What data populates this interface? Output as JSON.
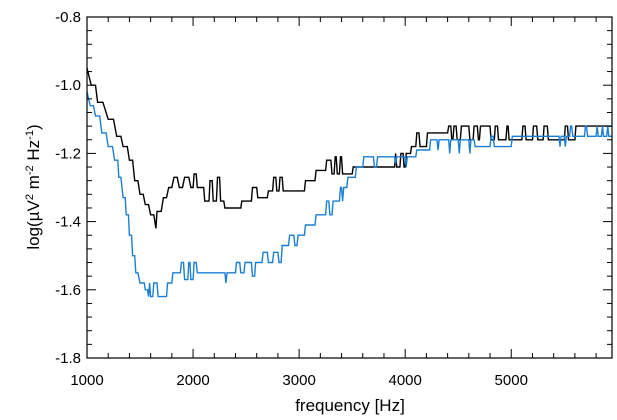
{
  "chart_data": {
    "type": "line",
    "title": "",
    "xlabel": "frequency [Hz]",
    "ylabel_parts": [
      "log(",
      "µ",
      "V",
      "2",
      " m",
      "-2",
      " Hz",
      "-1",
      ")"
    ],
    "xlim": [
      1000,
      5950
    ],
    "ylim": [
      -1.8,
      -0.8
    ],
    "x_ticks": [
      1000,
      2000,
      3000,
      4000,
      5000
    ],
    "x_tick_labels": [
      "1000",
      "2000",
      "3000",
      "4000",
      "5000"
    ],
    "y_ticks": [
      -1.8,
      -1.6,
      -1.4,
      -1.2,
      -1.0,
      -0.8
    ],
    "y_tick_labels": [
      "-1.8",
      "-1.6",
      "-1.4",
      "-1.2",
      "-1.0",
      "-0.8"
    ],
    "grid": false,
    "legend": "none",
    "series": [
      {
        "color": "#000000",
        "points": [
          [
            1000,
            -0.95
          ],
          [
            1040,
            -1.0
          ],
          [
            1080,
            -1.0
          ],
          [
            1100,
            -1.05
          ],
          [
            1150,
            -1.05
          ],
          [
            1200,
            -1.1
          ],
          [
            1250,
            -1.1
          ],
          [
            1280,
            -1.15
          ],
          [
            1320,
            -1.15
          ],
          [
            1340,
            -1.18
          ],
          [
            1380,
            -1.18
          ],
          [
            1400,
            -1.22
          ],
          [
            1430,
            -1.22
          ],
          [
            1450,
            -1.28
          ],
          [
            1480,
            -1.28
          ],
          [
            1500,
            -1.32
          ],
          [
            1530,
            -1.32
          ],
          [
            1550,
            -1.35
          ],
          [
            1580,
            -1.35
          ],
          [
            1600,
            -1.38
          ],
          [
            1630,
            -1.38
          ],
          [
            1650,
            -1.42
          ],
          [
            1660,
            -1.37
          ],
          [
            1700,
            -1.37
          ],
          [
            1720,
            -1.33
          ],
          [
            1750,
            -1.33
          ],
          [
            1770,
            -1.3
          ],
          [
            1800,
            -1.3
          ],
          [
            1820,
            -1.27
          ],
          [
            1850,
            -1.27
          ],
          [
            1870,
            -1.3
          ],
          [
            1900,
            -1.3
          ],
          [
            1920,
            -1.27
          ],
          [
            1960,
            -1.27
          ],
          [
            1980,
            -1.3
          ],
          [
            2000,
            -1.3
          ],
          [
            2010,
            -1.26
          ],
          [
            2030,
            -1.26
          ],
          [
            2040,
            -1.3
          ],
          [
            2100,
            -1.3
          ],
          [
            2110,
            -1.34
          ],
          [
            2150,
            -1.34
          ],
          [
            2160,
            -1.28
          ],
          [
            2180,
            -1.28
          ],
          [
            2190,
            -1.34
          ],
          [
            2220,
            -1.34
          ],
          [
            2230,
            -1.27
          ],
          [
            2250,
            -1.27
          ],
          [
            2260,
            -1.34
          ],
          [
            2290,
            -1.34
          ],
          [
            2300,
            -1.36
          ],
          [
            2450,
            -1.36
          ],
          [
            2460,
            -1.34
          ],
          [
            2550,
            -1.34
          ],
          [
            2560,
            -1.3
          ],
          [
            2600,
            -1.3
          ],
          [
            2610,
            -1.33
          ],
          [
            2700,
            -1.33
          ],
          [
            2710,
            -1.31
          ],
          [
            2750,
            -1.31
          ],
          [
            2760,
            -1.27
          ],
          [
            2780,
            -1.27
          ],
          [
            2790,
            -1.31
          ],
          [
            2810,
            -1.31
          ],
          [
            2820,
            -1.27
          ],
          [
            2840,
            -1.27
          ],
          [
            2850,
            -1.31
          ],
          [
            3050,
            -1.31
          ],
          [
            3060,
            -1.28
          ],
          [
            3150,
            -1.28
          ],
          [
            3160,
            -1.25
          ],
          [
            3250,
            -1.25
          ],
          [
            3260,
            -1.22
          ],
          [
            3300,
            -1.22
          ],
          [
            3310,
            -1.26
          ],
          [
            3330,
            -1.26
          ],
          [
            3340,
            -1.21
          ],
          [
            3350,
            -1.21
          ],
          [
            3360,
            -1.26
          ],
          [
            3380,
            -1.26
          ],
          [
            3390,
            -1.21
          ],
          [
            3400,
            -1.21
          ],
          [
            3410,
            -1.26
          ],
          [
            3500,
            -1.26
          ],
          [
            3510,
            -1.24
          ],
          [
            3900,
            -1.24
          ],
          [
            3910,
            -1.2
          ],
          [
            3920,
            -1.24
          ],
          [
            3950,
            -1.24
          ],
          [
            3960,
            -1.2
          ],
          [
            3980,
            -1.2
          ],
          [
            3990,
            -1.24
          ],
          [
            4000,
            -1.24
          ],
          [
            4010,
            -1.2
          ],
          [
            4050,
            -1.2
          ],
          [
            4060,
            -1.18
          ],
          [
            4100,
            -1.18
          ],
          [
            4110,
            -1.14
          ],
          [
            4130,
            -1.14
          ],
          [
            4140,
            -1.18
          ],
          [
            4200,
            -1.18
          ],
          [
            4210,
            -1.14
          ],
          [
            4400,
            -1.14
          ],
          [
            4410,
            -1.12
          ],
          [
            4430,
            -1.12
          ],
          [
            4440,
            -1.16
          ],
          [
            4450,
            -1.16
          ],
          [
            4460,
            -1.12
          ],
          [
            4480,
            -1.12
          ],
          [
            4490,
            -1.16
          ],
          [
            4520,
            -1.16
          ],
          [
            4530,
            -1.12
          ],
          [
            4600,
            -1.12
          ],
          [
            4610,
            -1.16
          ],
          [
            4640,
            -1.16
          ],
          [
            4650,
            -1.12
          ],
          [
            4680,
            -1.12
          ],
          [
            4690,
            -1.16
          ],
          [
            4700,
            -1.16
          ],
          [
            4710,
            -1.12
          ],
          [
            4800,
            -1.12
          ],
          [
            4810,
            -1.16
          ],
          [
            4840,
            -1.16
          ],
          [
            4850,
            -1.12
          ],
          [
            4870,
            -1.12
          ],
          [
            4880,
            -1.16
          ],
          [
            4950,
            -1.16
          ],
          [
            4960,
            -1.12
          ],
          [
            4970,
            -1.12
          ],
          [
            4980,
            -1.16
          ],
          [
            5100,
            -1.16
          ],
          [
            5110,
            -1.12
          ],
          [
            5130,
            -1.12
          ],
          [
            5140,
            -1.16
          ],
          [
            5200,
            -1.16
          ],
          [
            5210,
            -1.12
          ],
          [
            5240,
            -1.12
          ],
          [
            5250,
            -1.16
          ],
          [
            5300,
            -1.16
          ],
          [
            5310,
            -1.12
          ],
          [
            5340,
            -1.12
          ],
          [
            5350,
            -1.16
          ],
          [
            5500,
            -1.16
          ],
          [
            5510,
            -1.12
          ],
          [
            5530,
            -1.12
          ],
          [
            5540,
            -1.16
          ],
          [
            5600,
            -1.16
          ],
          [
            5610,
            -1.12
          ],
          [
            5950,
            -1.12
          ]
        ]
      },
      {
        "color": "#1a7fd4",
        "points": [
          [
            1000,
            -1.02
          ],
          [
            1030,
            -1.06
          ],
          [
            1060,
            -1.06
          ],
          [
            1080,
            -1.09
          ],
          [
            1120,
            -1.09
          ],
          [
            1140,
            -1.14
          ],
          [
            1180,
            -1.14
          ],
          [
            1200,
            -1.18
          ],
          [
            1240,
            -1.18
          ],
          [
            1260,
            -1.22
          ],
          [
            1290,
            -1.22
          ],
          [
            1300,
            -1.27
          ],
          [
            1320,
            -1.27
          ],
          [
            1340,
            -1.33
          ],
          [
            1360,
            -1.33
          ],
          [
            1370,
            -1.38
          ],
          [
            1390,
            -1.38
          ],
          [
            1400,
            -1.44
          ],
          [
            1420,
            -1.44
          ],
          [
            1430,
            -1.5
          ],
          [
            1450,
            -1.5
          ],
          [
            1460,
            -1.55
          ],
          [
            1480,
            -1.55
          ],
          [
            1500,
            -1.58
          ],
          [
            1540,
            -1.58
          ],
          [
            1550,
            -1.6
          ],
          [
            1570,
            -1.6
          ],
          [
            1580,
            -1.62
          ],
          [
            1590,
            -1.58
          ],
          [
            1600,
            -1.62
          ],
          [
            1620,
            -1.62
          ],
          [
            1630,
            -1.58
          ],
          [
            1660,
            -1.58
          ],
          [
            1670,
            -1.62
          ],
          [
            1750,
            -1.62
          ],
          [
            1760,
            -1.58
          ],
          [
            1800,
            -1.58
          ],
          [
            1810,
            -1.55
          ],
          [
            1880,
            -1.55
          ],
          [
            1890,
            -1.52
          ],
          [
            1910,
            -1.52
          ],
          [
            1920,
            -1.57
          ],
          [
            1950,
            -1.57
          ],
          [
            1960,
            -1.52
          ],
          [
            1970,
            -1.52
          ],
          [
            1980,
            -1.57
          ],
          [
            2000,
            -1.57
          ],
          [
            2010,
            -1.52
          ],
          [
            2030,
            -1.52
          ],
          [
            2040,
            -1.55
          ],
          [
            2300,
            -1.55
          ],
          [
            2310,
            -1.58
          ],
          [
            2320,
            -1.55
          ],
          [
            2400,
            -1.55
          ],
          [
            2410,
            -1.52
          ],
          [
            2440,
            -1.52
          ],
          [
            2450,
            -1.55
          ],
          [
            2480,
            -1.55
          ],
          [
            2490,
            -1.52
          ],
          [
            2550,
            -1.52
          ],
          [
            2560,
            -1.56
          ],
          [
            2580,
            -1.56
          ],
          [
            2590,
            -1.52
          ],
          [
            2650,
            -1.52
          ],
          [
            2660,
            -1.49
          ],
          [
            2700,
            -1.49
          ],
          [
            2710,
            -1.52
          ],
          [
            2750,
            -1.52
          ],
          [
            2760,
            -1.49
          ],
          [
            2800,
            -1.49
          ],
          [
            2810,
            -1.52
          ],
          [
            2830,
            -1.52
          ],
          [
            2840,
            -1.47
          ],
          [
            2900,
            -1.47
          ],
          [
            2910,
            -1.44
          ],
          [
            2950,
            -1.44
          ],
          [
            2960,
            -1.47
          ],
          [
            2980,
            -1.47
          ],
          [
            2990,
            -1.44
          ],
          [
            3050,
            -1.44
          ],
          [
            3060,
            -1.41
          ],
          [
            3150,
            -1.41
          ],
          [
            3160,
            -1.38
          ],
          [
            3250,
            -1.38
          ],
          [
            3260,
            -1.34
          ],
          [
            3280,
            -1.34
          ],
          [
            3290,
            -1.38
          ],
          [
            3310,
            -1.38
          ],
          [
            3320,
            -1.34
          ],
          [
            3380,
            -1.34
          ],
          [
            3390,
            -1.3
          ],
          [
            3400,
            -1.3
          ],
          [
            3410,
            -1.34
          ],
          [
            3420,
            -1.3
          ],
          [
            3450,
            -1.3
          ],
          [
            3460,
            -1.27
          ],
          [
            3530,
            -1.27
          ],
          [
            3540,
            -1.24
          ],
          [
            3600,
            -1.24
          ],
          [
            3610,
            -1.21
          ],
          [
            3700,
            -1.21
          ],
          [
            3710,
            -1.24
          ],
          [
            3730,
            -1.24
          ],
          [
            3740,
            -1.21
          ],
          [
            3900,
            -1.21
          ],
          [
            3910,
            -1.23
          ],
          [
            3920,
            -1.21
          ],
          [
            4000,
            -1.21
          ],
          [
            4010,
            -1.24
          ],
          [
            4020,
            -1.21
          ],
          [
            4100,
            -1.21
          ],
          [
            4110,
            -1.19
          ],
          [
            4230,
            -1.19
          ],
          [
            4240,
            -1.16
          ],
          [
            4300,
            -1.16
          ],
          [
            4310,
            -1.19
          ],
          [
            4320,
            -1.16
          ],
          [
            4410,
            -1.16
          ],
          [
            4420,
            -1.2
          ],
          [
            4430,
            -1.16
          ],
          [
            4500,
            -1.16
          ],
          [
            4510,
            -1.2
          ],
          [
            4520,
            -1.16
          ],
          [
            4600,
            -1.16
          ],
          [
            4610,
            -1.2
          ],
          [
            4620,
            -1.16
          ],
          [
            4650,
            -1.16
          ],
          [
            4660,
            -1.18
          ],
          [
            4800,
            -1.18
          ],
          [
            4810,
            -1.15
          ],
          [
            4830,
            -1.15
          ],
          [
            4840,
            -1.18
          ],
          [
            5000,
            -1.18
          ],
          [
            5010,
            -1.15
          ],
          [
            5450,
            -1.15
          ],
          [
            5460,
            -1.18
          ],
          [
            5470,
            -1.15
          ],
          [
            5500,
            -1.15
          ],
          [
            5510,
            -1.18
          ],
          [
            5520,
            -1.15
          ],
          [
            5550,
            -1.15
          ],
          [
            5560,
            -1.12
          ],
          [
            5570,
            -1.12
          ],
          [
            5580,
            -1.15
          ],
          [
            5690,
            -1.15
          ],
          [
            5700,
            -1.12
          ],
          [
            5710,
            -1.12
          ],
          [
            5720,
            -1.15
          ],
          [
            5800,
            -1.15
          ],
          [
            5810,
            -1.12
          ],
          [
            5820,
            -1.15
          ],
          [
            5850,
            -1.15
          ],
          [
            5860,
            -1.12
          ],
          [
            5870,
            -1.15
          ],
          [
            5900,
            -1.15
          ],
          [
            5910,
            -1.12
          ],
          [
            5920,
            -1.15
          ],
          [
            5950,
            -1.15
          ]
        ]
      }
    ]
  }
}
